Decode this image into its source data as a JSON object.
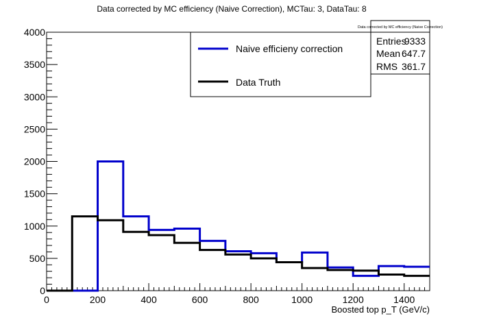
{
  "chart_data": {
    "type": "line",
    "title": "Data corrected by MC efficiency (Naive Correction), MCTau: 3, DataTau: 8",
    "xlabel": "Boosted top p_T (GeV/c)",
    "ylabel": "",
    "xlim": [
      0,
      1500
    ],
    "ylim": [
      0,
      4000
    ],
    "x_ticks": [
      "0",
      "200",
      "400",
      "600",
      "800",
      "1000",
      "1200",
      "1400"
    ],
    "y_ticks": [
      "0",
      "500",
      "1000",
      "1500",
      "2000",
      "2500",
      "3000",
      "3500",
      "4000"
    ],
    "bin_edges": [
      0,
      100,
      200,
      300,
      400,
      500,
      600,
      700,
      800,
      900,
      1000,
      1100,
      1200,
      1300,
      1400,
      1500
    ],
    "grid": false,
    "legend_position": "top-center",
    "series": [
      {
        "name": "Naive efficieny correction",
        "color": "#0000cc",
        "values": [
          0,
          0,
          2000,
          1150,
          940,
          960,
          770,
          610,
          580,
          440,
          590,
          360,
          230,
          380,
          370
        ]
      },
      {
        "name": "Data Truth",
        "color": "#000000",
        "values": [
          0,
          1150,
          1090,
          910,
          860,
          740,
          630,
          560,
          500,
          440,
          350,
          320,
          310,
          250,
          230
        ]
      }
    ],
    "stats_box": {
      "title": "Data corrected by MC efficiency (Naive Correction)",
      "rows": [
        {
          "label": "Entries",
          "value": "9333"
        },
        {
          "label": "Mean",
          "value": "647.7"
        },
        {
          "label": "RMS",
          "value": "361.7"
        }
      ]
    }
  }
}
